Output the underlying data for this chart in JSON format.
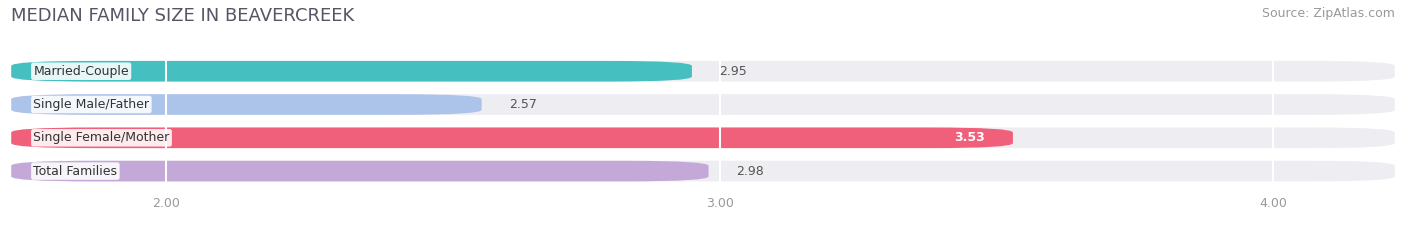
{
  "title": "MEDIAN FAMILY SIZE IN BEAVERCREEK",
  "source": "Source: ZipAtlas.com",
  "categories": [
    "Married-Couple",
    "Single Male/Father",
    "Single Female/Mother",
    "Total Families"
  ],
  "values": [
    2.95,
    2.57,
    3.53,
    2.98
  ],
  "bar_colors": [
    "#45bfbf",
    "#adc4ea",
    "#f0607a",
    "#c4a8d8"
  ],
  "background_color": "#ffffff",
  "bar_bg_color": "#ededf2",
  "xlim_left": 1.72,
  "xlim_right": 4.22,
  "xstart": 1.72,
  "xticks": [
    2.0,
    3.0,
    4.0
  ],
  "xtick_labels": [
    "2.00",
    "3.00",
    "4.00"
  ],
  "title_fontsize": 13,
  "source_fontsize": 9,
  "label_fontsize": 9,
  "value_fontsize": 9,
  "bar_height": 0.62
}
